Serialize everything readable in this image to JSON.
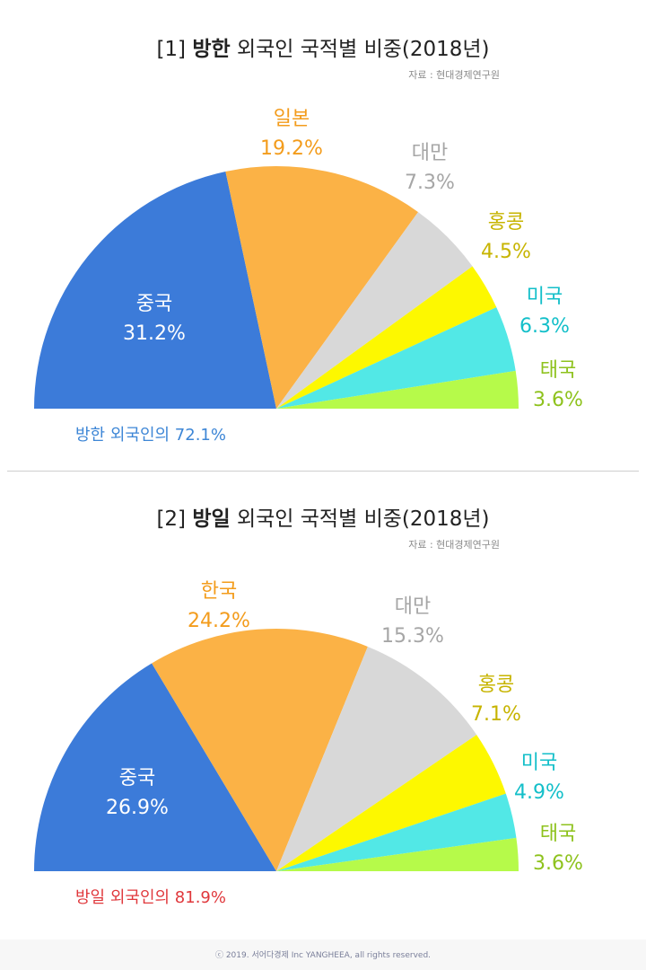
{
  "charts": [
    {
      "title_prefix": "[1] ",
      "title_bold": "방한",
      "title_rest": " 외국인 국적별 비중(2018년)",
      "source": "자료 : 현대경제연구원",
      "total_label": "방한 외국인의 72.1%",
      "total_color": "#3d86d6"
    },
    {
      "title_prefix": "[2] ",
      "title_bold": "방일",
      "title_rest": " 외국인 국적별 비중(2018년)",
      "source": "자료 : 현대경제연구원",
      "total_label": "방일 외국인의 81.9%",
      "total_color": "#e0383c"
    }
  ],
  "chart_data": [
    {
      "type": "pie",
      "subtype": "half-pie",
      "title": "[1] 방한 외국인 국적별 비중(2018년)",
      "slices": [
        {
          "name": "중국",
          "value": 31.2,
          "label": "31.2%",
          "color": "#3c7bd9",
          "label_color": "#ffffff"
        },
        {
          "name": "일본",
          "value": 19.2,
          "label": "19.2%",
          "color": "#fbb246",
          "label_color": "#f39c1c"
        },
        {
          "name": "대만",
          "value": 7.3,
          "label": "7.3%",
          "color": "#d8d8d8",
          "label_color": "#a6a6a6"
        },
        {
          "name": "홍콩",
          "value": 4.5,
          "label": "4.5%",
          "color": "#fdf800",
          "label_color": "#c7b400"
        },
        {
          "name": "미국",
          "value": 6.3,
          "label": "6.3%",
          "color": "#52e8e6",
          "label_color": "#13bfc9"
        },
        {
          "name": "태국",
          "value": 3.6,
          "label": "3.6%",
          "color": "#b6fa4a",
          "label_color": "#8ec21d"
        }
      ]
    },
    {
      "type": "pie",
      "subtype": "half-pie",
      "title": "[2] 방일 외국인 국적별 비중(2018년)",
      "slices": [
        {
          "name": "중국",
          "value": 26.9,
          "label": "26.9%",
          "color": "#3c7bd9",
          "label_color": "#ffffff"
        },
        {
          "name": "한국",
          "value": 24.2,
          "label": "24.2%",
          "color": "#fbb246",
          "label_color": "#f39c1c"
        },
        {
          "name": "대만",
          "value": 15.3,
          "label": "15.3%",
          "color": "#d8d8d8",
          "label_color": "#a6a6a6"
        },
        {
          "name": "홍콩",
          "value": 7.1,
          "label": "7.1%",
          "color": "#fdf800",
          "label_color": "#c7b400"
        },
        {
          "name": "미국",
          "value": 4.9,
          "label": "4.9%",
          "color": "#52e8e6",
          "label_color": "#13bfc9"
        },
        {
          "name": "태국",
          "value": 3.6,
          "label": "3.6%",
          "color": "#b6fa4a",
          "label_color": "#8ec21d"
        }
      ]
    }
  ],
  "footer": {
    "copyright": "ⓒ 2019. 서어다경제 Inc YANGHEEA, all rights reserved."
  }
}
